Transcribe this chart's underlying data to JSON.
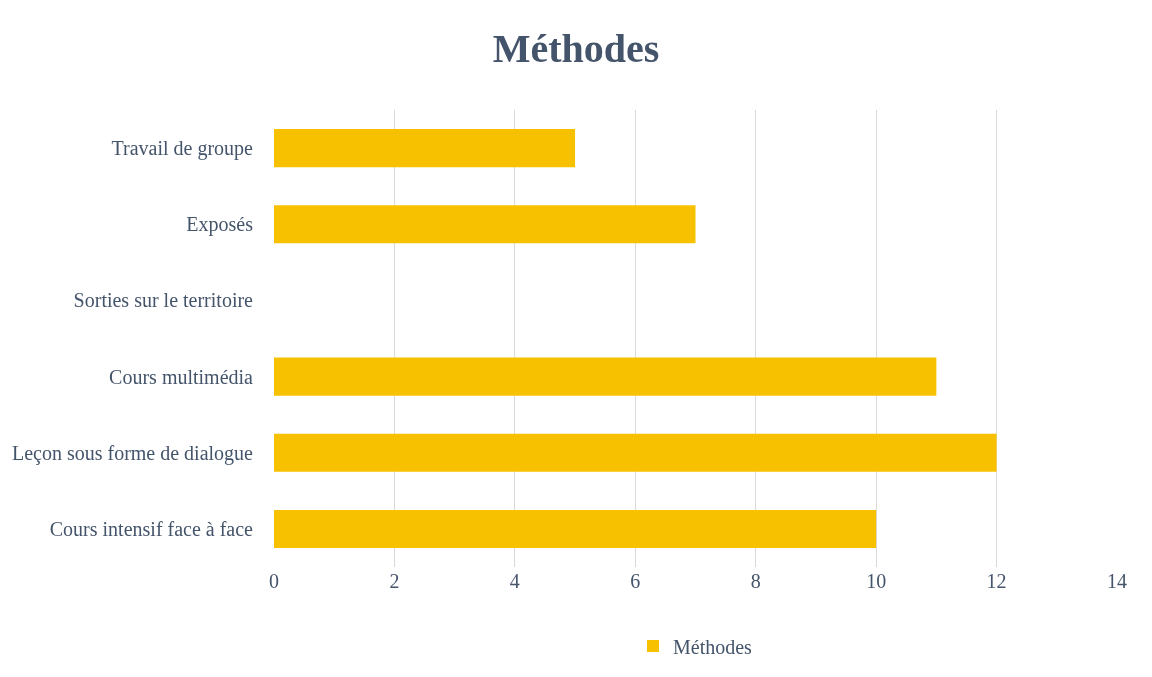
{
  "chart_data": {
    "type": "bar",
    "title": "Méthodes",
    "orientation": "horizontal",
    "categories": [
      "Travail de groupe",
      "Exposés",
      "Sorties sur le territoire",
      "Cours multimédia",
      "Leçon sous forme de dialogue",
      "Cours intensif face à face"
    ],
    "series": [
      {
        "name": "Méthodes",
        "color": "#f7c100",
        "values": [
          5,
          7,
          0,
          11,
          12,
          10
        ]
      }
    ],
    "xlim": [
      0,
      14
    ],
    "xticks": [
      0,
      2,
      4,
      6,
      8,
      10,
      12,
      14
    ],
    "grid": "x",
    "legend": "bottom"
  }
}
